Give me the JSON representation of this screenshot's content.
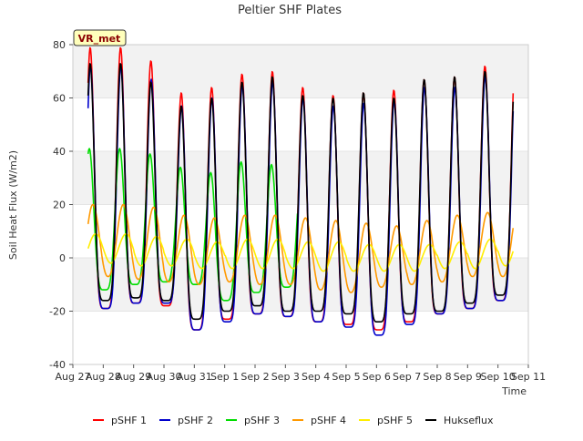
{
  "chart_data": {
    "type": "line",
    "title": "Peltier SHF Plates",
    "xlabel": "Time",
    "ylabel": "Soil Heat Flux (W/m2)",
    "site_badge": "VR_met",
    "ylim": [
      -40,
      80
    ],
    "yticks": [
      -40,
      -20,
      0,
      20,
      40,
      60,
      80
    ],
    "xlim_days": [
      0,
      15
    ],
    "xticks": [
      "Aug 27",
      "Aug 28",
      "Aug 29",
      "Aug 30",
      "Aug 31",
      "Sep 1",
      "Sep 2",
      "Sep 3",
      "Sep 4",
      "Sep 5",
      "Sep 6",
      "Sep 7",
      "Sep 8",
      "Sep 9",
      "Sep 10",
      "Sep 11"
    ],
    "grid": "horizontal bands",
    "legend_position": "bottom",
    "data_start": "Aug 27 12:00",
    "data_end": "Sep 10 12:00",
    "series": [
      {
        "name": "pSHF 1",
        "color": "#ff0000",
        "daily_max": [
          79,
          74,
          62,
          64,
          69,
          70,
          64,
          61,
          62,
          63,
          67,
          68,
          72,
          74
        ],
        "daily_min": [
          -19,
          -17,
          -18,
          -27,
          -23,
          -21,
          -22,
          -24,
          -25,
          -27,
          -24,
          -21,
          -19,
          -16,
          -10
        ]
      },
      {
        "name": "pSHF 2",
        "color": "#0000cc",
        "daily_max": [
          72,
          67,
          57,
          60,
          65,
          66,
          60,
          57,
          58,
          59,
          64,
          64,
          68,
          70
        ],
        "daily_min": [
          -19,
          -17,
          -17,
          -27,
          -24,
          -21,
          -22,
          -24,
          -26,
          -29,
          -25,
          -21,
          -19,
          -16,
          -9
        ]
      },
      {
        "name": "pSHF 3",
        "color": "#00dd00",
        "daily_max": [
          41,
          39,
          34,
          32,
          36,
          35
        ],
        "daily_min": [
          -12,
          -10,
          -9,
          -10,
          -16,
          -13,
          -11
        ]
      },
      {
        "name": "pSHF 4",
        "color": "#ff9900",
        "daily_max": [
          20,
          19,
          16,
          15,
          16,
          16,
          15,
          14,
          13,
          12,
          14,
          16,
          17,
          18
        ],
        "daily_min": [
          -7,
          -8,
          -9,
          -10,
          -9,
          -10,
          -10,
          -12,
          -13,
          -11,
          -10,
          -9,
          -7,
          -7
        ]
      },
      {
        "name": "pSHF 5",
        "color": "#ffee00",
        "daily_max": [
          9,
          8,
          7,
          6,
          7,
          7,
          6,
          6,
          5,
          5,
          5,
          6,
          7,
          8
        ],
        "daily_min": [
          -2,
          -3,
          -3,
          -4,
          -4,
          -4,
          -4,
          -5,
          -5,
          -5,
          -5,
          -4,
          -4,
          -3
        ]
      },
      {
        "name": "Hukseflux",
        "color": "#000000",
        "daily_max": [
          73,
          66,
          57,
          60,
          66,
          68,
          61,
          60,
          62,
          60,
          67,
          68,
          70,
          70
        ],
        "daily_min": [
          -16,
          -15,
          -16,
          -23,
          -20,
          -18,
          -20,
          -20,
          -21,
          -24,
          -21,
          -20,
          -17,
          -14,
          -12
        ]
      }
    ]
  }
}
